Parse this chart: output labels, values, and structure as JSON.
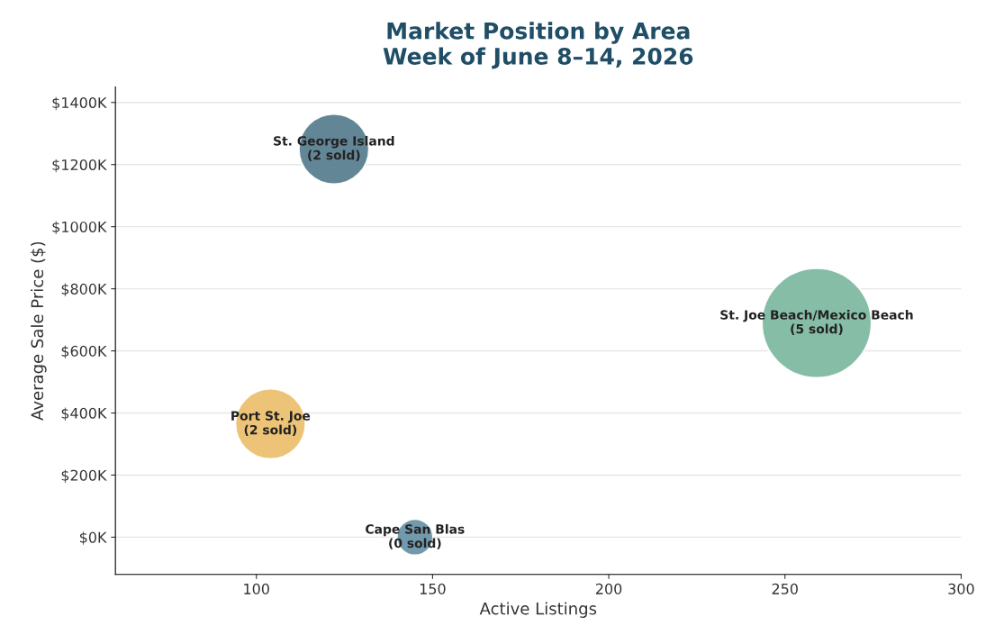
{
  "chart_data": {
    "type": "bubble",
    "title": "Market Position by Area\nWeek of June 8–14, 2026",
    "xlabel": "Active Listings",
    "ylabel": "Average Sale Price ($)",
    "x": [
      122,
      259,
      104,
      145
    ],
    "values": [
      1250,
      690,
      365,
      0
    ],
    "sizes": [
      0.41,
      1,
      0.41,
      0.11
    ],
    "colors": [
      "#5b7f90",
      "#7fb9a2",
      "#ecc070",
      "#6b93a8"
    ],
    "annotations": [
      {
        "text": "St. George Island\n(2 sold)",
        "x": 122,
        "y": 1250
      },
      {
        "text": "St. Joe Beach/Mexico Beach\n(5 sold)",
        "x": 259,
        "y": 690
      },
      {
        "text": "Port St. Joe\n(2 sold)",
        "x": 104,
        "y": 365
      },
      {
        "text": "Cape San Blas\n(0 sold)",
        "x": 145,
        "y": 0
      }
    ],
    "xlim": [
      60,
      300
    ],
    "xticks": [
      100,
      150,
      200,
      250,
      300
    ],
    "ylim": [
      -120,
      1450
    ],
    "yticks": [
      {
        "value": 0,
        "label": "$0K"
      },
      {
        "value": 200,
        "label": "$200K"
      },
      {
        "value": 400,
        "label": "$400K"
      },
      {
        "value": 600,
        "label": "$600K"
      },
      {
        "value": 800,
        "label": "$800K"
      },
      {
        "value": 1000,
        "label": "$1000K"
      },
      {
        "value": 1200,
        "label": "$1200K"
      },
      {
        "value": 1400,
        "label": "$1400K"
      }
    ],
    "grid": "y"
  }
}
